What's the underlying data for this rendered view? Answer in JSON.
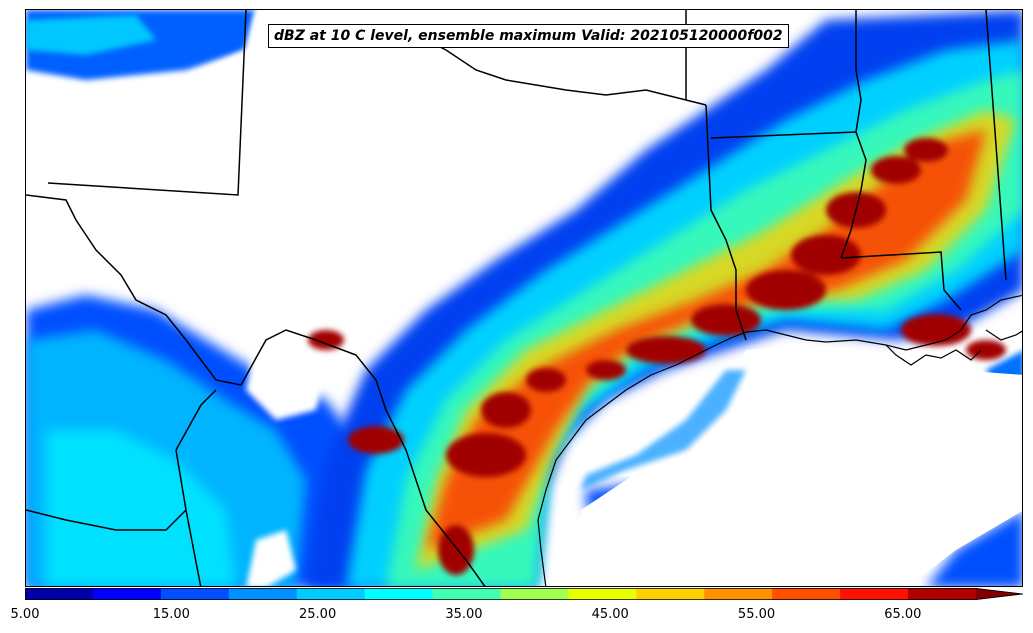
{
  "title": "dBZ at 10 C level, ensemble maximum Valid: 202105120000f002",
  "colorbar": {
    "levels": [
      5,
      10,
      15,
      20,
      25,
      30,
      35,
      40,
      45,
      50,
      55,
      60,
      65,
      70
    ],
    "colors": [
      "#0000a8",
      "#0000ff",
      "#0050ff",
      "#0090ff",
      "#00ccff",
      "#00ffff",
      "#40ffb0",
      "#a0ff50",
      "#e8ff00",
      "#ffd000",
      "#ff9000",
      "#ff5000",
      "#ff1000",
      "#b00000"
    ],
    "extend": "max",
    "extend_color": "#800000",
    "tick_labels": [
      "5.00",
      "15.00",
      "25.00",
      "35.00",
      "45.00",
      "55.00",
      "65.00"
    ]
  },
  "map": {
    "region": "Texas and Gulf Coast",
    "features": [
      "state-borders",
      "coastline",
      "radar-reflectivity"
    ]
  }
}
